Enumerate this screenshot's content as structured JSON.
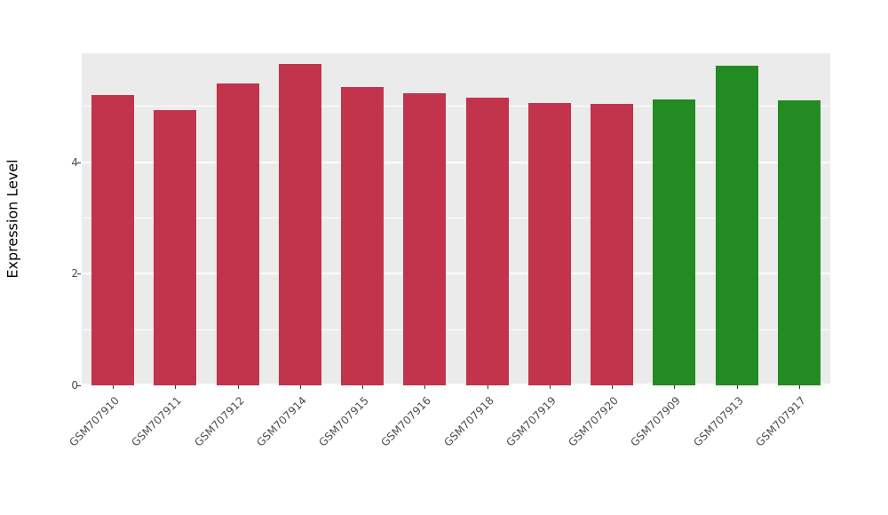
{
  "chart_data": {
    "type": "bar",
    "title": "",
    "xlabel": "",
    "ylabel": "Expression Level",
    "ylim": [
      0,
      5.95
    ],
    "yticks": [
      0,
      2,
      4
    ],
    "yticks_minor": [
      1,
      3,
      5
    ],
    "grid": "on",
    "legend": "none",
    "panel_background": "#EBEBEB",
    "categories": [
      "GSM707910",
      "GSM707911",
      "GSM707912",
      "GSM707914",
      "GSM707915",
      "GSM707916",
      "GSM707918",
      "GSM707919",
      "GSM707920",
      "GSM707909",
      "GSM707913",
      "GSM707917"
    ],
    "values": [
      5.2,
      4.93,
      5.41,
      5.76,
      5.34,
      5.23,
      5.15,
      5.06,
      5.04,
      5.12,
      5.72,
      5.1
    ],
    "bar_colors": [
      "#C2334C",
      "#C2334C",
      "#C2334C",
      "#C2334C",
      "#C2334C",
      "#C2334C",
      "#C2334C",
      "#C2334C",
      "#C2334C",
      "#228B22",
      "#228B22",
      "#228B22"
    ],
    "color_groups": {
      "red": "#C2334C",
      "green": "#228B22"
    }
  }
}
